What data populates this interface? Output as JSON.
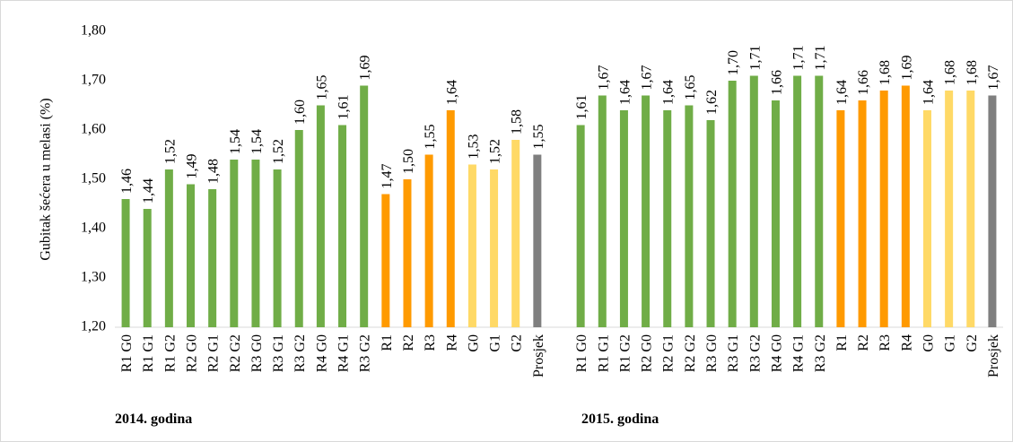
{
  "chart_data": {
    "type": "bar",
    "y_label": "Gubitak šećera u melasi (%)",
    "annotations": [
      "2014. godina",
      "2015. godina"
    ],
    "categories": [
      "R1 G0",
      "R1 G1",
      "R1 G2",
      "R2 G0",
      "R2 G1",
      "R2 G2",
      "R3 G0",
      "R3 G1",
      "R3 G2",
      "R4 G0",
      "R4 G1",
      "R3 G2",
      "R1",
      "R2",
      "R3",
      "R4",
      "G0",
      "G1",
      "G2",
      "Prosjek",
      null,
      "R1 G0",
      "R1 G1",
      "R1 G2",
      "R2 G0",
      "R2 G1",
      "R2 G2",
      "R3 G0",
      "R3 G1",
      "R3 G2",
      "R4 G0",
      "R4 G1",
      "R3 G2",
      "R1",
      "R2",
      "R3",
      "R4",
      "G0",
      "G1",
      "G2",
      "Prosjek"
    ],
    "values": [
      1.46,
      1.44,
      1.52,
      1.49,
      1.48,
      1.54,
      1.54,
      1.52,
      1.6,
      1.65,
      1.61,
      1.69,
      1.47,
      1.5,
      1.55,
      1.64,
      1.53,
      1.52,
      1.58,
      1.55,
      null,
      1.61,
      1.67,
      1.64,
      1.67,
      1.64,
      1.65,
      1.62,
      1.7,
      1.71,
      1.66,
      1.71,
      1.71,
      1.64,
      1.66,
      1.68,
      1.69,
      1.64,
      1.68,
      1.68,
      1.67
    ],
    "value_labels": [
      "1,46",
      "1,44",
      "1,52",
      "1,49",
      "1,48",
      "1,54",
      "1,54",
      "1,52",
      "1,60",
      "1,65",
      "1,61",
      "1,69",
      "1,47",
      "1,50",
      "1,55",
      "1,64",
      "1,53",
      "1,52",
      "1,58",
      "1,55",
      null,
      "1,61",
      "1,67",
      "1,64",
      "1,67",
      "1,64",
      "1,65",
      "1,62",
      "1,70",
      "1,71",
      "1,66",
      "1,71",
      "1,71",
      "1,64",
      "1,66",
      "1,68",
      "1,69",
      "1,64",
      "1,68",
      "1,68",
      "1,67"
    ],
    "colors": [
      "#70ad47",
      "#70ad47",
      "#70ad47",
      "#70ad47",
      "#70ad47",
      "#70ad47",
      "#70ad47",
      "#70ad47",
      "#70ad47",
      "#70ad47",
      "#70ad47",
      "#70ad47",
      "#ff9a00",
      "#ff9a00",
      "#ff9a00",
      "#ff9a00",
      "#ffd966",
      "#ffd966",
      "#ffd966",
      "#7f7f7f",
      null,
      "#70ad47",
      "#70ad47",
      "#70ad47",
      "#70ad47",
      "#70ad47",
      "#70ad47",
      "#70ad47",
      "#70ad47",
      "#70ad47",
      "#70ad47",
      "#70ad47",
      "#70ad47",
      "#ff9a00",
      "#ff9a00",
      "#ff9a00",
      "#ff9a00",
      "#ffd966",
      "#ffd966",
      "#ffd966",
      "#7f7f7f"
    ],
    "ylim": [
      1.2,
      1.8
    ],
    "yticks": [
      {
        "value": 1.2,
        "label": "1,20"
      },
      {
        "value": 1.3,
        "label": "1,30"
      },
      {
        "value": 1.4,
        "label": "1,40"
      },
      {
        "value": 1.5,
        "label": "1,50"
      },
      {
        "value": 1.6,
        "label": "1,60"
      },
      {
        "value": 1.7,
        "label": "1,70"
      },
      {
        "value": 1.8,
        "label": "1,80"
      }
    ],
    "grid": false
  }
}
